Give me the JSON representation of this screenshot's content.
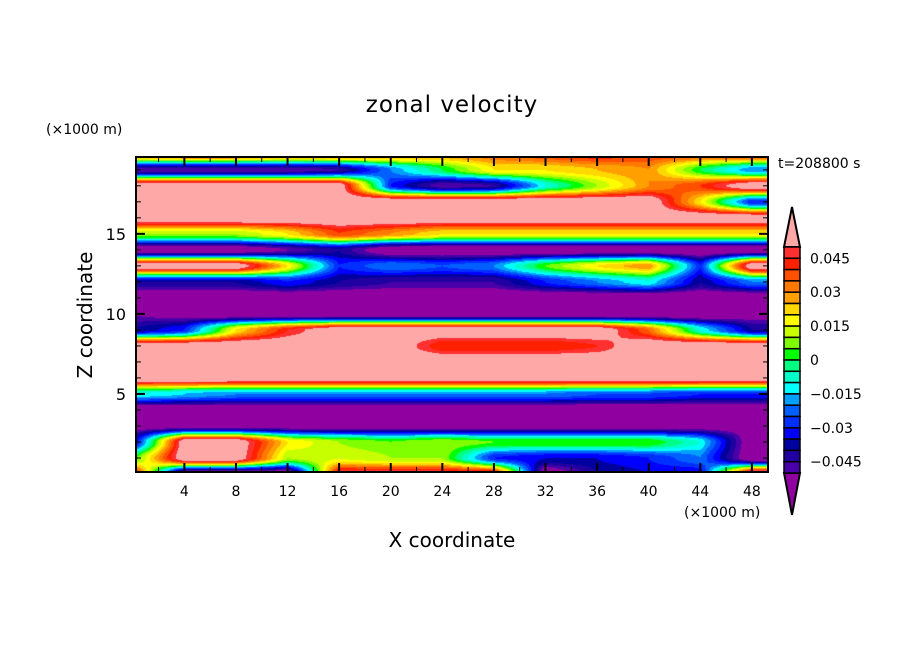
{
  "chart_data": {
    "type": "heatmap",
    "subtype": "filled-contour",
    "title": "zonal velocity",
    "xlabel": "X coordinate",
    "ylabel": "Z coordinate",
    "x_unit_label": "(×1000 m)",
    "y_unit_label": "(×1000 m)",
    "time_label": "t=208800 s",
    "xlim": [
      0.25,
      49.25
    ],
    "ylim": [
      0.125,
      19.8
    ],
    "x_ticks": [
      4,
      8,
      12,
      16,
      20,
      24,
      28,
      32,
      36,
      40,
      44,
      48
    ],
    "x_tick_labels": [
      "4",
      "8",
      "12",
      "16",
      "20",
      "24",
      "28",
      "32",
      "36",
      "40",
      "44",
      "48"
    ],
    "y_ticks": [
      5,
      10,
      15
    ],
    "y_tick_labels": [
      "5",
      "10",
      "15"
    ],
    "colorbar": {
      "min": -0.05,
      "max": 0.05,
      "step": 0.005,
      "tick_values": [
        0.045,
        0.03,
        0.015,
        0,
        -0.015,
        -0.03,
        -0.045
      ],
      "tick_labels": [
        "0.045",
        "0.03",
        "0.015",
        "0",
        "−0.015",
        "−0.03",
        "−0.045"
      ],
      "colors": [
        "#4a00a8",
        "#2000a0",
        "#0000a0",
        "#0000ff",
        "#0030ff",
        "#0060ff",
        "#00a0ff",
        "#00ffff",
        "#00ffc8",
        "#00ff80",
        "#00ff00",
        "#80ff00",
        "#c8ff00",
        "#ffff00",
        "#ffd800",
        "#ffa000",
        "#ff7800",
        "#ff5000",
        "#ff2000",
        "#ff3030"
      ],
      "under_color": "#9000a0",
      "over_color": "#ffa8a8"
    },
    "grid_x": [
      0,
      4,
      8,
      12,
      16,
      20,
      24,
      28,
      32,
      36,
      40,
      44,
      48
    ],
    "grid_z": [
      0,
      1,
      2,
      3,
      4,
      5,
      6,
      7,
      8,
      9,
      10,
      11,
      12,
      13,
      14,
      15,
      16,
      17,
      18,
      19,
      20
    ],
    "values": [
      [
        0.05,
        -0.06,
        -0.06,
        -0.06,
        0.05,
        0.05,
        0.05,
        0.05,
        -0.06,
        -0.04,
        -0.035,
        -0.035,
        0.06
      ],
      [
        0.0,
        0.06,
        0.06,
        0.01,
        0.015,
        0.01,
        0.01,
        -0.03,
        -0.035,
        -0.035,
        -0.03,
        -0.02,
        -0.06
      ],
      [
        -0.04,
        0.06,
        0.06,
        0.02,
        0.01,
        0.005,
        0.01,
        0.005,
        0.005,
        0.005,
        0.005,
        -0.01,
        -0.06
      ],
      [
        -0.055,
        -0.055,
        -0.055,
        -0.055,
        -0.055,
        -0.055,
        -0.055,
        -0.055,
        -0.055,
        -0.055,
        -0.055,
        -0.055,
        -0.055
      ],
      [
        -0.06,
        -0.06,
        -0.06,
        -0.06,
        -0.06,
        -0.06,
        -0.06,
        -0.06,
        -0.06,
        -0.06,
        -0.06,
        -0.06,
        -0.06
      ],
      [
        -0.01,
        -0.015,
        -0.02,
        -0.02,
        -0.02,
        -0.02,
        -0.02,
        -0.02,
        -0.02,
        -0.025,
        -0.025,
        -0.03,
        -0.03
      ],
      [
        0.06,
        0.06,
        0.06,
        0.06,
        0.06,
        0.06,
        0.06,
        0.06,
        0.06,
        0.06,
        0.06,
        0.06,
        0.06
      ],
      [
        0.06,
        0.06,
        0.06,
        0.06,
        0.06,
        0.06,
        0.06,
        0.06,
        0.06,
        0.06,
        0.06,
        0.06,
        0.06
      ],
      [
        0.06,
        0.06,
        0.06,
        0.06,
        0.06,
        0.06,
        0.04,
        0.04,
        0.04,
        0.045,
        0.06,
        0.06,
        0.06
      ],
      [
        -0.04,
        -0.03,
        0.02,
        0.045,
        0.06,
        0.06,
        0.06,
        0.06,
        0.06,
        0.06,
        0.035,
        -0.01,
        -0.04
      ],
      [
        -0.05,
        -0.055,
        -0.06,
        -0.06,
        -0.06,
        -0.06,
        -0.06,
        -0.06,
        -0.06,
        -0.06,
        -0.06,
        -0.06,
        -0.055
      ],
      [
        -0.06,
        -0.06,
        -0.06,
        -0.06,
        -0.06,
        -0.06,
        -0.06,
        -0.06,
        -0.06,
        -0.06,
        -0.06,
        -0.06,
        -0.06
      ],
      [
        -0.04,
        -0.04,
        -0.04,
        -0.03,
        -0.04,
        -0.045,
        -0.045,
        -0.045,
        -0.03,
        -0.02,
        -0.01,
        -0.04,
        -0.02
      ],
      [
        0.06,
        0.06,
        0.06,
        0.02,
        -0.03,
        -0.02,
        -0.025,
        -0.02,
        0.005,
        0.02,
        0.03,
        -0.03,
        0.06
      ],
      [
        -0.06,
        -0.06,
        -0.06,
        -0.05,
        -0.04,
        -0.06,
        -0.06,
        -0.06,
        -0.06,
        -0.06,
        -0.06,
        -0.06,
        -0.06
      ],
      [
        0.01,
        0.01,
        0.01,
        0.02,
        0.04,
        0.03,
        0.02,
        0.02,
        0.02,
        0.02,
        0.02,
        0.02,
        0.02
      ],
      [
        0.06,
        0.06,
        0.06,
        0.06,
        0.06,
        0.06,
        0.06,
        0.06,
        0.06,
        0.06,
        0.06,
        0.06,
        0.06
      ],
      [
        0.06,
        0.06,
        0.06,
        0.06,
        0.06,
        0.06,
        0.06,
        0.06,
        0.06,
        0.06,
        0.06,
        0.02,
        -0.03
      ],
      [
        0.06,
        0.06,
        0.06,
        0.06,
        0.06,
        -0.03,
        -0.05,
        -0.045,
        -0.01,
        0.01,
        0.03,
        0.04,
        0.06
      ],
      [
        -0.05,
        -0.05,
        -0.05,
        -0.05,
        -0.045,
        -0.02,
        0.0,
        0.02,
        0.02,
        0.025,
        0.03,
        0.0,
        -0.02
      ],
      [
        0.04,
        0.045,
        0.045,
        0.04,
        0.04,
        0.035,
        0.03,
        0.035,
        0.04,
        0.045,
        0.04,
        0.04,
        0.045
      ]
    ]
  }
}
